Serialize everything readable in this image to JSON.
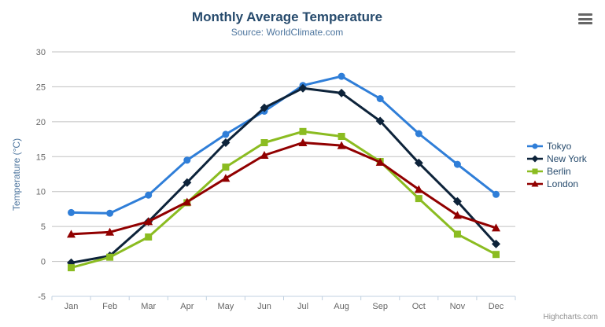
{
  "chart": {
    "credits": "Highcharts.com",
    "export_menu_icon": "hamburger-menu-icon"
  },
  "chart_data": {
    "type": "line",
    "title": "Monthly Average Temperature",
    "subtitle": "Source: WorldClimate.com",
    "xlabel": "",
    "ylabel": "Temperature (°C)",
    "categories": [
      "Jan",
      "Feb",
      "Mar",
      "Apr",
      "May",
      "Jun",
      "Jul",
      "Aug",
      "Sep",
      "Oct",
      "Nov",
      "Dec"
    ],
    "ylim": [
      -5,
      30
    ],
    "ytick_step": 5,
    "grid": true,
    "legend_position": "right",
    "series": [
      {
        "name": "Tokyo",
        "color": "#2f7ed8",
        "marker": "circle",
        "values": [
          7.0,
          6.9,
          9.5,
          14.5,
          18.2,
          21.5,
          25.2,
          26.5,
          23.3,
          18.3,
          13.9,
          9.6
        ]
      },
      {
        "name": "New York",
        "color": "#0d233a",
        "marker": "diamond",
        "values": [
          -0.2,
          0.8,
          5.7,
          11.3,
          17.0,
          22.0,
          24.8,
          24.1,
          20.1,
          14.1,
          8.6,
          2.5
        ]
      },
      {
        "name": "Berlin",
        "color": "#8bbc21",
        "marker": "square",
        "values": [
          -0.9,
          0.6,
          3.5,
          8.4,
          13.5,
          17.0,
          18.6,
          17.9,
          14.3,
          9.0,
          3.9,
          1.0
        ]
      },
      {
        "name": "London",
        "color": "#910000",
        "marker": "triangle",
        "values": [
          3.9,
          4.2,
          5.7,
          8.5,
          11.9,
          15.2,
          17.0,
          16.6,
          14.2,
          10.3,
          6.6,
          4.8
        ]
      }
    ]
  },
  "colors": {
    "title": "#274b6d",
    "subtitle": "#4d759e",
    "axis_title": "#4d759e",
    "axis_label": "#666666",
    "grid_line": "#c0c0c0",
    "axis_line": "#c0d0e0",
    "legend_text": "#274b6d",
    "credits_text": "#909090",
    "export_icon": "#666666",
    "background": "#ffffff"
  }
}
